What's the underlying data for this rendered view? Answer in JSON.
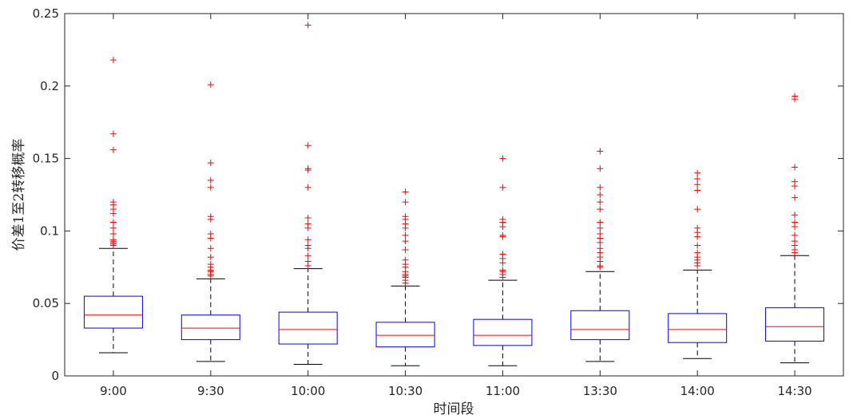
{
  "chart_data": {
    "type": "boxplot",
    "title": "",
    "xlabel": "时间段",
    "ylabel": "价差1至2转移概率",
    "ylim": [
      0,
      0.25
    ],
    "yticks": [
      0,
      0.05,
      0.1,
      0.15,
      0.2,
      0.25
    ],
    "ytick_labels": [
      "0",
      "0.05",
      "0.1",
      "0.15",
      "0.2",
      "0.25"
    ],
    "categories": [
      "9:00",
      "9:30",
      "10:00",
      "10:30",
      "11:00",
      "13:30",
      "14:00",
      "14:30"
    ],
    "boxes": [
      {
        "label": "9:00",
        "whisker_low": 0.016,
        "q1": 0.033,
        "median": 0.042,
        "q3": 0.055,
        "whisker_high": 0.088,
        "outliers": [
          0.218,
          0.167,
          0.156,
          0.12,
          0.118,
          0.115,
          0.112,
          0.106,
          0.102,
          0.098,
          0.094,
          0.093,
          0.092,
          0.091,
          0.09
        ]
      },
      {
        "label": "9:30",
        "whisker_low": 0.01,
        "q1": 0.025,
        "median": 0.033,
        "q3": 0.042,
        "whisker_high": 0.067,
        "outliers": [
          0.201,
          0.147,
          0.135,
          0.13,
          0.11,
          0.108,
          0.098,
          0.095,
          0.088,
          0.082,
          0.077,
          0.075,
          0.073,
          0.072,
          0.07,
          0.069
        ]
      },
      {
        "label": "10:00",
        "whisker_low": 0.008,
        "q1": 0.022,
        "median": 0.032,
        "q3": 0.044,
        "whisker_high": 0.074,
        "outliers": [
          0.242,
          0.159,
          0.143,
          0.142,
          0.13,
          0.109,
          0.105,
          0.102,
          0.094,
          0.09,
          0.088,
          0.083,
          0.079,
          0.076
        ]
      },
      {
        "label": "10:30",
        "whisker_low": 0.007,
        "q1": 0.02,
        "median": 0.028,
        "q3": 0.037,
        "whisker_high": 0.062,
        "outliers": [
          0.127,
          0.12,
          0.11,
          0.108,
          0.105,
          0.102,
          0.097,
          0.093,
          0.087,
          0.08,
          0.077,
          0.075,
          0.072,
          0.07,
          0.069,
          0.068,
          0.066,
          0.064
        ]
      },
      {
        "label": "11:00",
        "whisker_low": 0.007,
        "q1": 0.021,
        "median": 0.028,
        "q3": 0.039,
        "whisker_high": 0.066,
        "outliers": [
          0.15,
          0.13,
          0.108,
          0.106,
          0.103,
          0.097,
          0.096,
          0.084,
          0.081,
          0.078,
          0.073,
          0.072,
          0.07,
          0.068
        ]
      },
      {
        "label": "13:30",
        "whisker_low": 0.01,
        "q1": 0.025,
        "median": 0.032,
        "q3": 0.045,
        "whisker_high": 0.072,
        "outliers": [
          0.155,
          0.143,
          0.13,
          0.125,
          0.12,
          0.115,
          0.106,
          0.102,
          0.098,
          0.095,
          0.092,
          0.088,
          0.085,
          0.082,
          0.079,
          0.076,
          0.075
        ]
      },
      {
        "label": "14:00",
        "whisker_low": 0.012,
        "q1": 0.023,
        "median": 0.032,
        "q3": 0.043,
        "whisker_high": 0.073,
        "outliers": [
          0.14,
          0.136,
          0.132,
          0.128,
          0.115,
          0.102,
          0.099,
          0.096,
          0.09,
          0.085,
          0.082,
          0.08,
          0.078,
          0.076
        ]
      },
      {
        "label": "14:30",
        "whisker_low": 0.009,
        "q1": 0.024,
        "median": 0.034,
        "q3": 0.047,
        "whisker_high": 0.083,
        "outliers": [
          0.193,
          0.191,
          0.144,
          0.134,
          0.131,
          0.123,
          0.111,
          0.106,
          0.103,
          0.097,
          0.093,
          0.09,
          0.087,
          0.085
        ]
      }
    ]
  },
  "colors": {
    "box": "#0000ff",
    "median": "#ff0000",
    "whisker": "#000000",
    "outlier": "#ff0000",
    "axis": "#262626"
  }
}
